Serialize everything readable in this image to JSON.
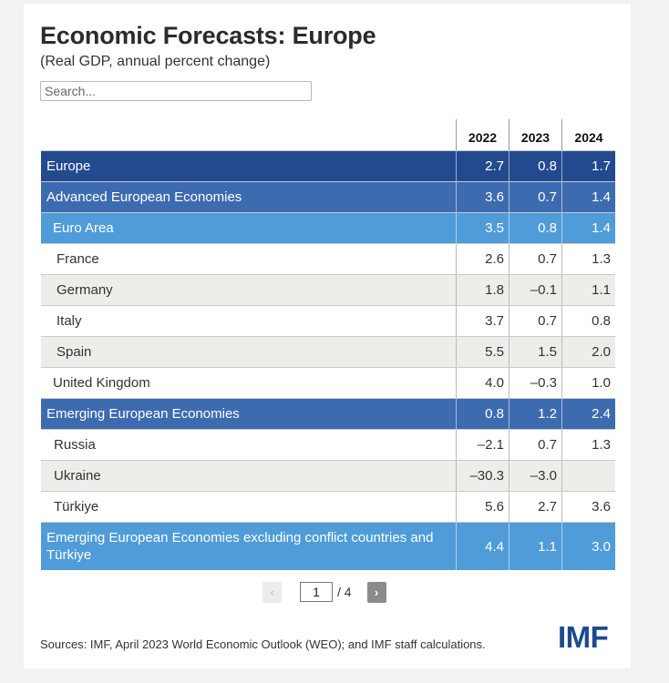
{
  "header": {
    "title": "Economic Forecasts: Europe",
    "subtitle": "(Real GDP, annual percent change)",
    "search_placeholder": "Search..."
  },
  "table": {
    "years": [
      "2022",
      "2023",
      "2024"
    ],
    "rows": [
      {
        "label": "Europe",
        "values": [
          "2.7",
          "0.8",
          "1.7"
        ]
      },
      {
        "label": "Advanced European Economies",
        "values": [
          "3.6",
          "0.7",
          "1.4"
        ]
      },
      {
        "label": "Euro Area",
        "values": [
          "3.5",
          "0.8",
          "1.4"
        ]
      },
      {
        "label": "France",
        "values": [
          "2.6",
          "0.7",
          "1.3"
        ]
      },
      {
        "label": "Germany",
        "values": [
          "1.8",
          "–0.1",
          "1.1"
        ]
      },
      {
        "label": "Italy",
        "values": [
          "3.7",
          "0.7",
          "0.8"
        ]
      },
      {
        "label": "Spain",
        "values": [
          "5.5",
          "1.5",
          "2.0"
        ]
      },
      {
        "label": "United Kingdom",
        "values": [
          "4.0",
          "–0.3",
          "1.0"
        ]
      },
      {
        "label": "Emerging European Economies",
        "values": [
          "0.8",
          "1.2",
          "2.4"
        ]
      },
      {
        "label": "Russia",
        "values": [
          "–2.1",
          "0.7",
          "1.3"
        ]
      },
      {
        "label": "Ukraine",
        "values": [
          "–30.3",
          "–3.0",
          ""
        ]
      },
      {
        "label": "Türkiye",
        "values": [
          "5.6",
          "2.7",
          "3.6"
        ]
      },
      {
        "label": "Emerging European Economies excluding conflict countries and Türkiye",
        "values": [
          "4.4",
          "1.1",
          "3.0"
        ]
      }
    ]
  },
  "pagination": {
    "prev_icon": "‹",
    "next_icon": "›",
    "current_page": "1",
    "total_label": "/ 4"
  },
  "footer": {
    "sources": "Sources: IMF, April 2023 World Economic Outlook (WEO); and IMF staff calculations.",
    "logo_text": "IMF"
  },
  "colors": {
    "level0": "#234a8f",
    "level1": "#3d6bb0",
    "level2": "#4f9cd9",
    "row_gray": "#ededea",
    "logo": "#1d4a8d"
  }
}
